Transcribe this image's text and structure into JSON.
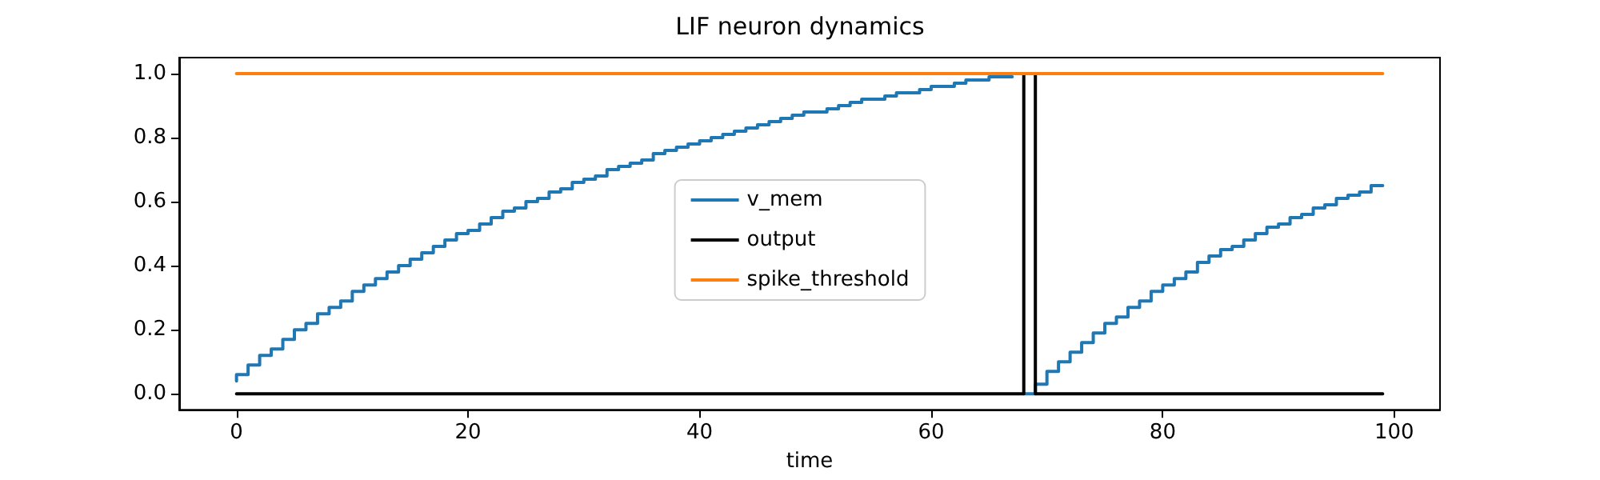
{
  "chart_data": {
    "type": "step",
    "title": "LIF neuron dynamics",
    "xlabel": "time",
    "x": [
      0,
      1,
      2,
      3,
      4,
      5,
      6,
      7,
      8,
      9,
      10,
      11,
      12,
      13,
      14,
      15,
      16,
      17,
      18,
      19,
      20,
      21,
      22,
      23,
      24,
      25,
      26,
      27,
      28,
      29,
      30,
      31,
      32,
      33,
      34,
      35,
      36,
      37,
      38,
      39,
      40,
      41,
      42,
      43,
      44,
      45,
      46,
      47,
      48,
      49,
      50,
      51,
      52,
      53,
      54,
      55,
      56,
      57,
      58,
      59,
      60,
      61,
      62,
      63,
      64,
      65,
      66,
      67,
      68,
      69,
      70,
      71,
      72,
      73,
      74,
      75,
      76,
      77,
      78,
      79,
      80,
      81,
      82,
      83,
      84,
      85,
      86,
      87,
      88,
      89,
      90,
      91,
      92,
      93,
      94,
      95,
      96,
      97,
      98,
      99
    ],
    "series": [
      {
        "name": "v_mem",
        "color": "#1f77b4",
        "values": [
          0.04,
          0.06,
          0.09,
          0.12,
          0.14,
          0.17,
          0.2,
          0.22,
          0.25,
          0.27,
          0.29,
          0.32,
          0.34,
          0.36,
          0.38,
          0.4,
          0.42,
          0.44,
          0.46,
          0.48,
          0.5,
          0.51,
          0.53,
          0.55,
          0.57,
          0.58,
          0.6,
          0.61,
          0.63,
          0.64,
          0.66,
          0.67,
          0.68,
          0.7,
          0.71,
          0.72,
          0.73,
          0.75,
          0.76,
          0.77,
          0.78,
          0.79,
          0.8,
          0.81,
          0.82,
          0.83,
          0.84,
          0.85,
          0.86,
          0.87,
          0.88,
          0.88,
          0.89,
          0.9,
          0.91,
          0.92,
          0.92,
          0.93,
          0.94,
          0.94,
          0.95,
          0.96,
          0.96,
          0.97,
          0.98,
          0.98,
          0.99,
          0.99,
          null,
          0,
          0.03,
          0.07,
          0.1,
          0.13,
          0.16,
          0.19,
          0.22,
          0.24,
          0.27,
          0.29,
          0.32,
          0.34,
          0.36,
          0.38,
          0.41,
          0.43,
          0.45,
          0.46,
          0.48,
          0.5,
          0.52,
          0.53,
          0.55,
          0.56,
          0.58,
          0.59,
          0.61,
          0.62,
          0.63,
          0.65
        ]
      },
      {
        "name": "output",
        "color": "#000000",
        "values": [
          0,
          0,
          0,
          0,
          0,
          0,
          0,
          0,
          0,
          0,
          0,
          0,
          0,
          0,
          0,
          0,
          0,
          0,
          0,
          0,
          0,
          0,
          0,
          0,
          0,
          0,
          0,
          0,
          0,
          0,
          0,
          0,
          0,
          0,
          0,
          0,
          0,
          0,
          0,
          0,
          0,
          0,
          0,
          0,
          0,
          0,
          0,
          0,
          0,
          0,
          0,
          0,
          0,
          0,
          0,
          0,
          0,
          0,
          0,
          0,
          0,
          0,
          0,
          0,
          0,
          0,
          0,
          0,
          0,
          1,
          0,
          0,
          0,
          0,
          0,
          0,
          0,
          0,
          0,
          0,
          0,
          0,
          0,
          0,
          0,
          0,
          0,
          0,
          0,
          0,
          0,
          0,
          0,
          0,
          0,
          0,
          0,
          0,
          0,
          0
        ]
      },
      {
        "name": "spike_threshold",
        "color": "#ff7f0e",
        "values": [
          1,
          1,
          1,
          1,
          1,
          1,
          1,
          1,
          1,
          1,
          1,
          1,
          1,
          1,
          1,
          1,
          1,
          1,
          1,
          1,
          1,
          1,
          1,
          1,
          1,
          1,
          1,
          1,
          1,
          1,
          1,
          1,
          1,
          1,
          1,
          1,
          1,
          1,
          1,
          1,
          1,
          1,
          1,
          1,
          1,
          1,
          1,
          1,
          1,
          1,
          1,
          1,
          1,
          1,
          1,
          1,
          1,
          1,
          1,
          1,
          1,
          1,
          1,
          1,
          1,
          1,
          1,
          1,
          1,
          1,
          1,
          1,
          1,
          1,
          1,
          1,
          1,
          1,
          1,
          1,
          1,
          1,
          1,
          1,
          1,
          1,
          1,
          1,
          1,
          1,
          1,
          1,
          1,
          1,
          1,
          1,
          1,
          1,
          1,
          1
        ]
      }
    ],
    "xlim": [
      -4.95,
      103.95
    ],
    "xticks": [
      0,
      20,
      40,
      60,
      80,
      100
    ],
    "ylim": [
      -0.05,
      1.05
    ],
    "yticks": [
      {
        "value": 0,
        "label": "0.0"
      },
      {
        "value": 0.2,
        "label": "0.2"
      },
      {
        "value": 0.4,
        "label": "0.4"
      },
      {
        "value": 0.6,
        "label": "0.6"
      },
      {
        "value": 0.8,
        "label": "0.8"
      },
      {
        "value": 1,
        "label": "1.0"
      }
    ],
    "grid": false,
    "legend": "center",
    "marker": "none",
    "line_style": "solid"
  }
}
